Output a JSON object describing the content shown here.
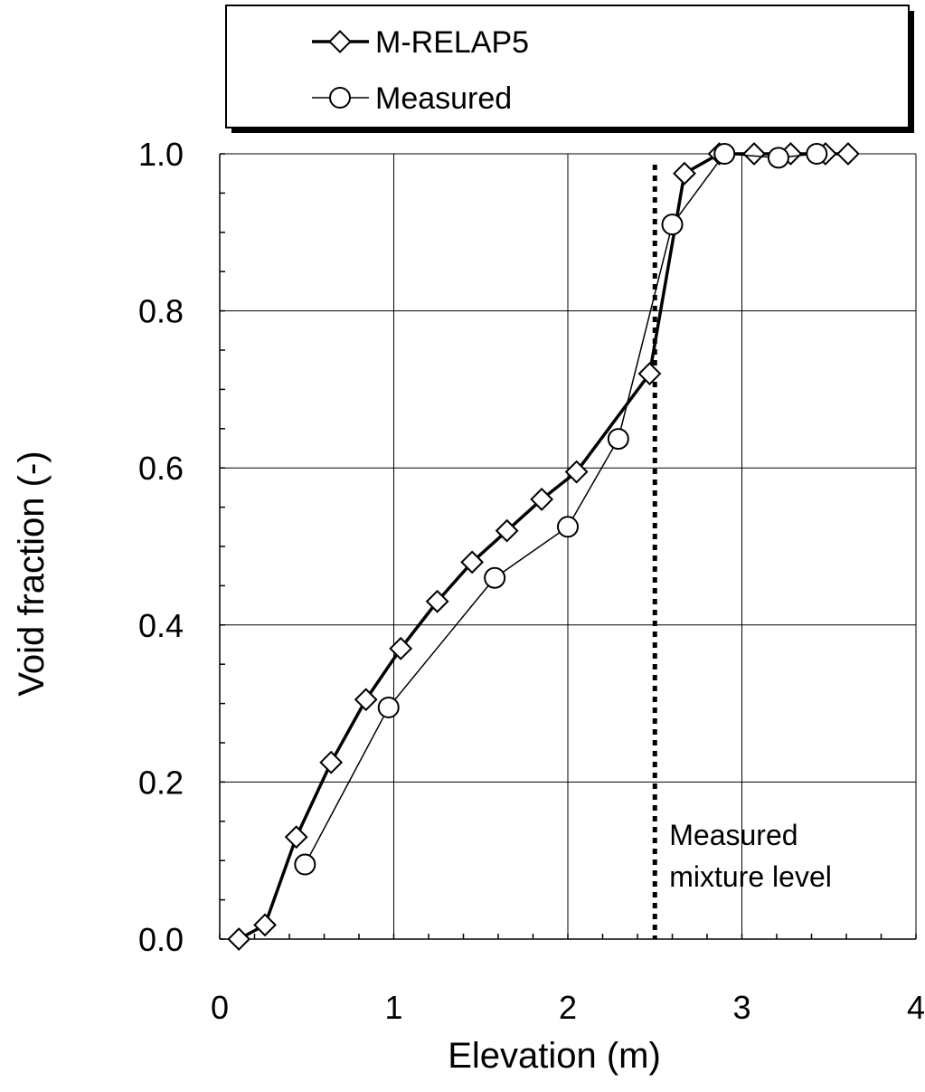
{
  "chart_data": {
    "type": "line",
    "title": "",
    "xlabel": "Elevation (m)",
    "ylabel": "Void fraction (-)",
    "xlim": [
      0,
      4
    ],
    "ylim": [
      0.0,
      1.0
    ],
    "x_ticks": [
      "0",
      "1",
      "2",
      "3",
      "4"
    ],
    "y_ticks": [
      "0.0",
      "0.2",
      "0.4",
      "0.6",
      "0.8",
      "1.0"
    ],
    "grid": "major",
    "legend_position": "top",
    "series": [
      {
        "name": "M-RELAP5",
        "marker": "diamond",
        "line": "thick",
        "x": [
          0.11,
          0.26,
          0.44,
          0.64,
          0.84,
          1.04,
          1.25,
          1.45,
          1.65,
          1.85,
          2.05,
          2.47,
          2.67,
          2.87,
          3.07,
          3.28,
          3.48,
          3.61
        ],
        "y": [
          0.0,
          0.018,
          0.13,
          0.225,
          0.305,
          0.37,
          0.43,
          0.48,
          0.52,
          0.56,
          0.595,
          0.72,
          0.975,
          1.0,
          1.0,
          1.0,
          1.0,
          1.0
        ]
      },
      {
        "name": "Measured",
        "marker": "circle",
        "line": "thin",
        "x": [
          0.49,
          0.97,
          1.58,
          2.0,
          2.29,
          2.6,
          2.9,
          3.21,
          3.43
        ],
        "y": [
          0.095,
          0.295,
          0.46,
          0.525,
          0.637,
          0.91,
          1.0,
          0.995,
          1.0
        ]
      }
    ],
    "annotations": [
      {
        "text_line1": "Measured",
        "text_line2": "mixture level",
        "x": 2.5,
        "style": "dotted-vertical"
      }
    ]
  }
}
